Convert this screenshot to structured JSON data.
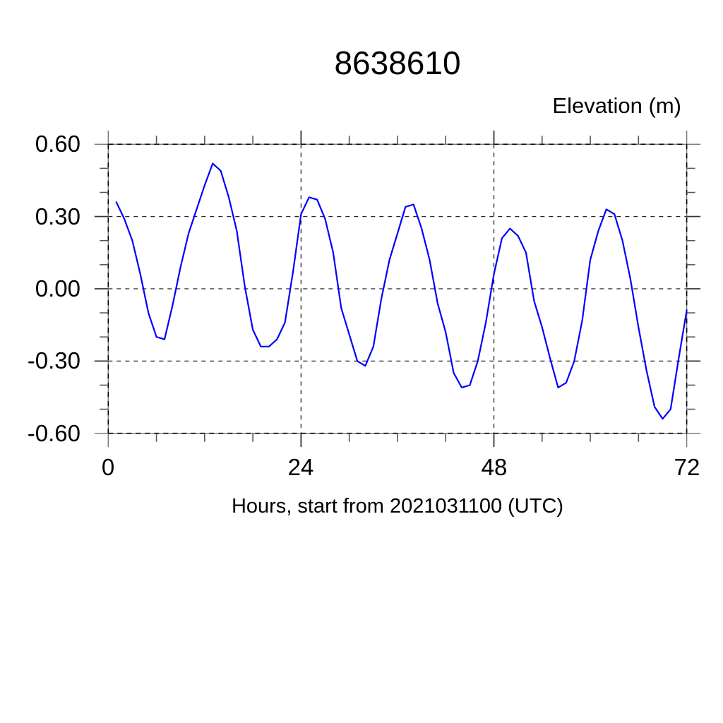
{
  "title": "8638610",
  "y_axis_title": "Elevation (m)",
  "x_axis_label": "Hours, start from 2021031100 (UTC)",
  "colors": {
    "background": "#ffffff",
    "line": "#0000ff",
    "frame": "#777777",
    "grid_dash": "#222222",
    "major_tick": "#333333",
    "minor_tick": "#555555",
    "text": "#000000"
  },
  "chart_data": {
    "type": "line",
    "title": "8638610",
    "xlabel": "Hours, start from 2021031100 (UTC)",
    "ylabel": "Elevation (m)",
    "xlim": [
      0,
      72
    ],
    "ylim": [
      -0.6,
      0.6
    ],
    "x_major_ticks": [
      0,
      24,
      48,
      72
    ],
    "x_tick_labels": [
      "0",
      "24",
      "48",
      "72"
    ],
    "x_minor_tick_interval": 6,
    "y_major_ticks": [
      0.6,
      0.3,
      0.0,
      -0.3,
      -0.6
    ],
    "y_tick_labels": [
      "0.60",
      "0.30",
      "0.00",
      "-0.30",
      "-0.60"
    ],
    "y_minor_tick_interval": 0.1,
    "grid": "dashed-at-major-ticks",
    "legend": "none",
    "line_color": "#0000ff",
    "series": [
      {
        "name": "elevation",
        "x": [
          1,
          2,
          3,
          4,
          5,
          6,
          7,
          8,
          9,
          10,
          11,
          12,
          13,
          14,
          15,
          16,
          17,
          18,
          19,
          20,
          21,
          22,
          23,
          24,
          25,
          26,
          27,
          28,
          29,
          30,
          31,
          32,
          33,
          34,
          35,
          36,
          37,
          38,
          39,
          40,
          41,
          42,
          43,
          44,
          45,
          46,
          47,
          48,
          49,
          50,
          51,
          52,
          53,
          54,
          55,
          56,
          57,
          58,
          59,
          60,
          61,
          62,
          63,
          64,
          65,
          66,
          67,
          68,
          69,
          70,
          71,
          72
        ],
        "y": [
          0.36,
          0.29,
          0.2,
          0.06,
          -0.1,
          -0.2,
          -0.21,
          -0.07,
          0.09,
          0.23,
          0.33,
          0.43,
          0.52,
          0.49,
          0.38,
          0.24,
          0.01,
          -0.17,
          -0.24,
          -0.24,
          -0.21,
          -0.14,
          0.07,
          0.31,
          0.38,
          0.37,
          0.29,
          0.15,
          -0.08,
          -0.19,
          -0.3,
          -0.32,
          -0.24,
          -0.04,
          0.12,
          0.23,
          0.34,
          0.35,
          0.25,
          0.12,
          -0.06,
          -0.18,
          -0.35,
          -0.41,
          -0.4,
          -0.3,
          -0.14,
          0.06,
          0.21,
          0.25,
          0.22,
          0.15,
          -0.05,
          -0.16,
          -0.29,
          -0.41,
          -0.39,
          -0.3,
          -0.13,
          0.12,
          0.24,
          0.33,
          0.31,
          0.2,
          0.04,
          -0.16,
          -0.34,
          -0.49,
          -0.54,
          -0.5,
          -0.29,
          -0.09
        ]
      }
    ]
  }
}
